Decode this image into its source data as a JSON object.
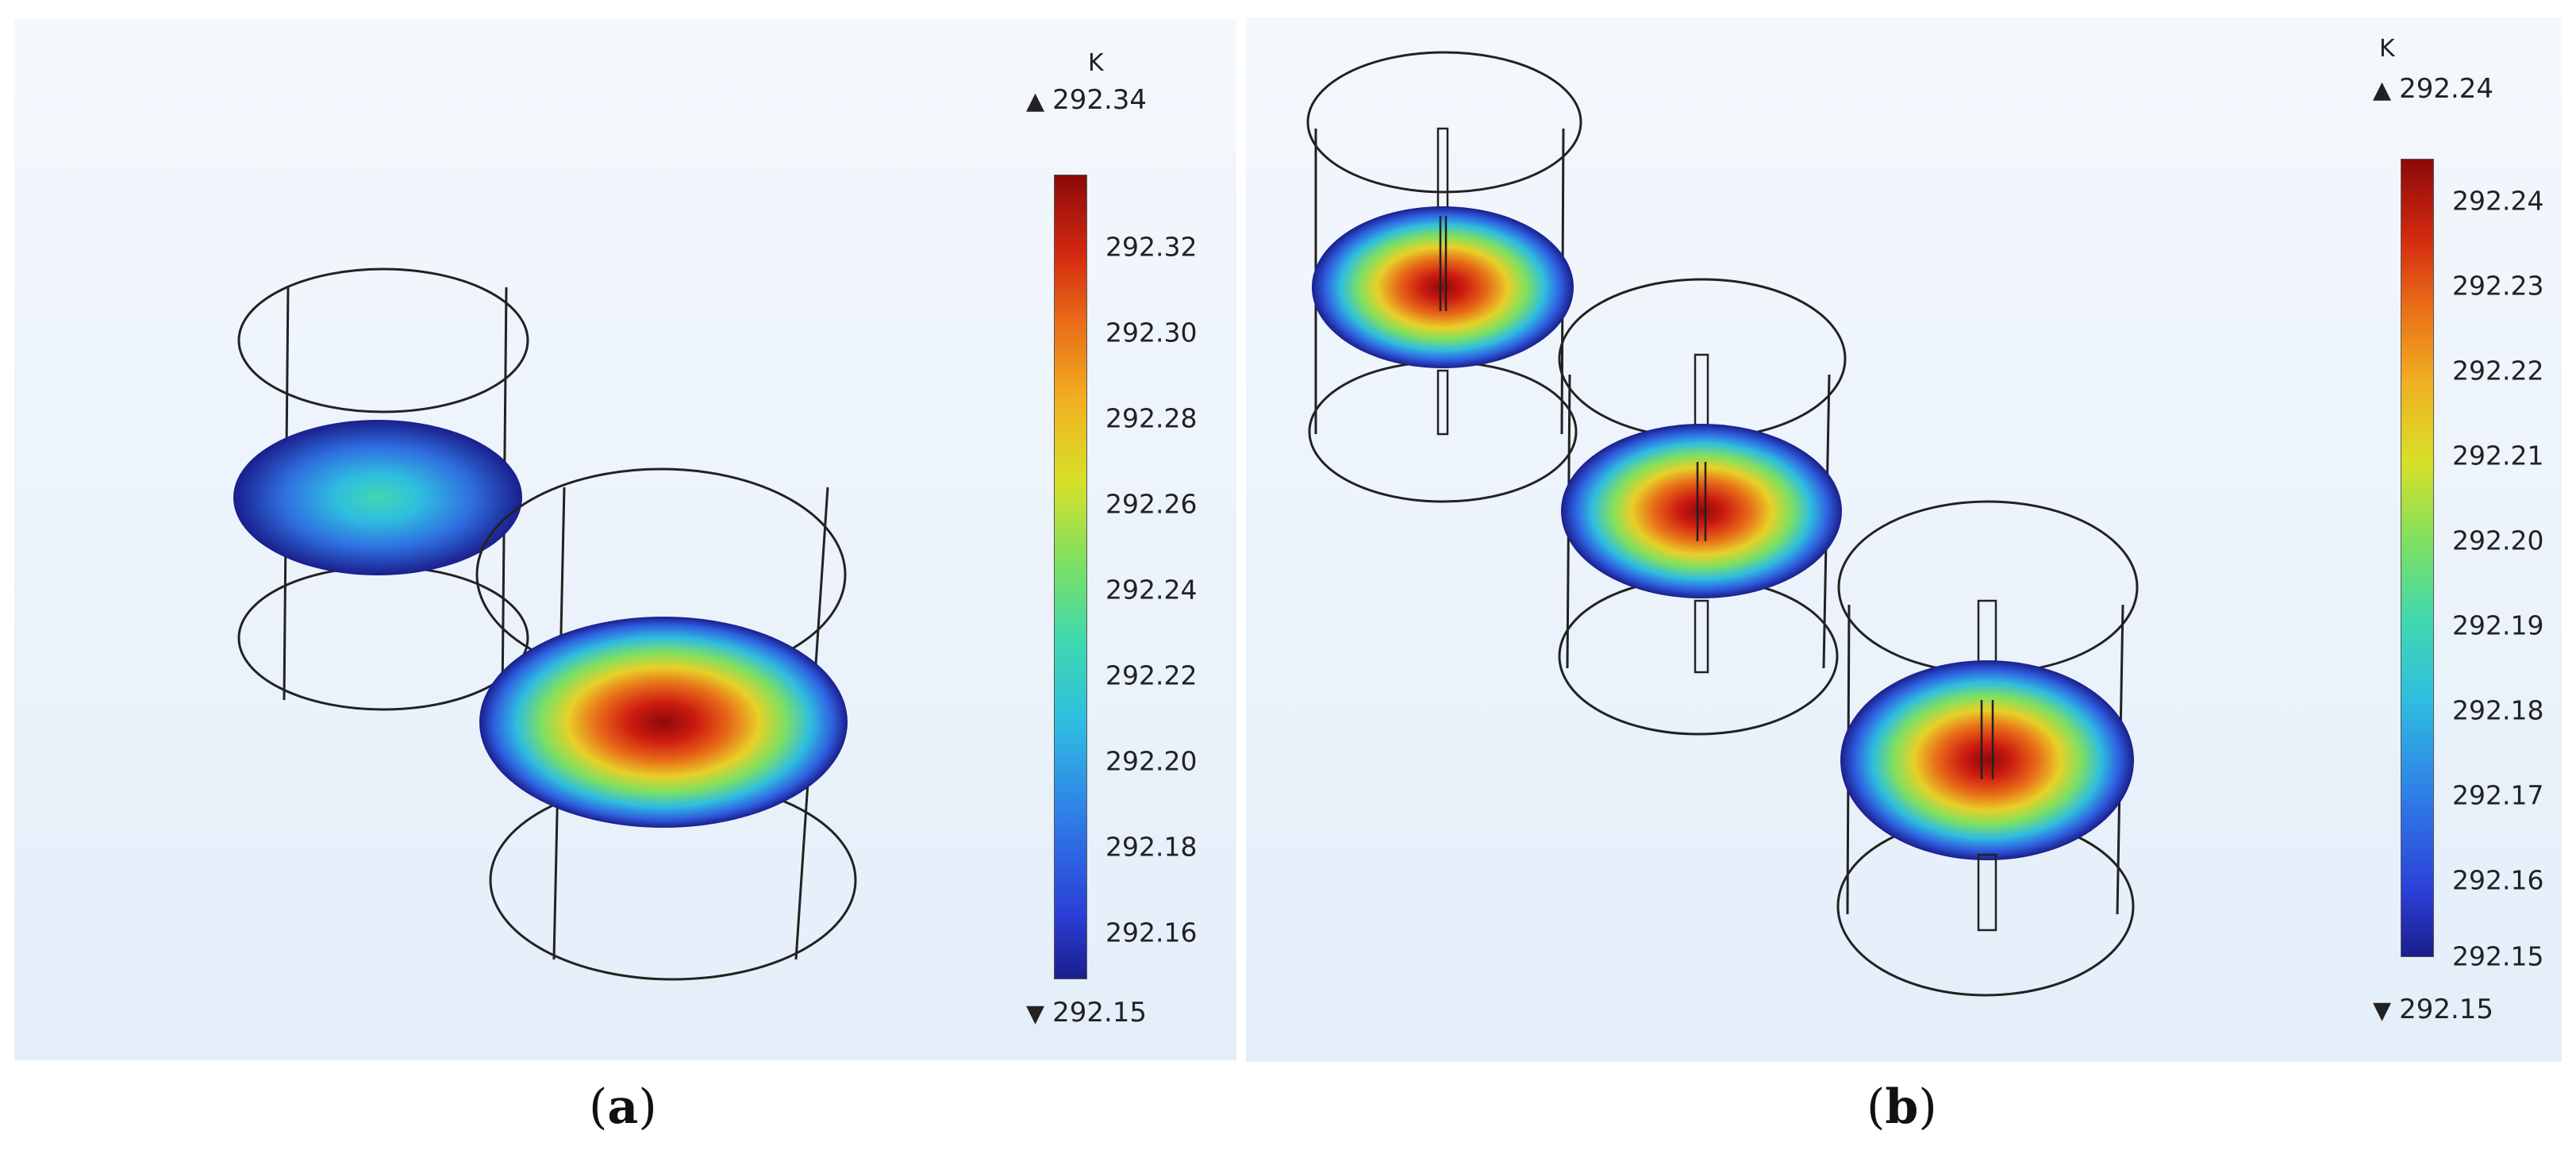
{
  "figure": {
    "panels": [
      {
        "id": "a",
        "caption_open": "(",
        "caption_letter": "a",
        "caption_close": ")",
        "unit": "K",
        "max_label": "292.34",
        "min_label": "292.15",
        "ticks": [
          "292.32",
          "292.30",
          "292.28",
          "292.26",
          "292.24",
          "292.22",
          "292.20",
          "292.18",
          "292.16"
        ]
      },
      {
        "id": "b",
        "caption_open": "(",
        "caption_letter": "b",
        "caption_close": ")",
        "unit": "K",
        "max_label": "292.24",
        "min_label": "292.15",
        "ticks": [
          "292.24",
          "292.23",
          "292.22",
          "292.21",
          "292.20",
          "292.19",
          "292.18",
          "292.17",
          "292.16",
          "292.15"
        ]
      }
    ],
    "icons": {
      "max_marker": "triangle-up-icon",
      "min_marker": "triangle-down-icon"
    },
    "colors": {
      "panel_bg_top": "#f4f8fd",
      "panel_bg_bottom": "#e4eef9",
      "wire": "#222222",
      "hot": "#8c0a0a",
      "cold": "#1a1e8c"
    }
  }
}
